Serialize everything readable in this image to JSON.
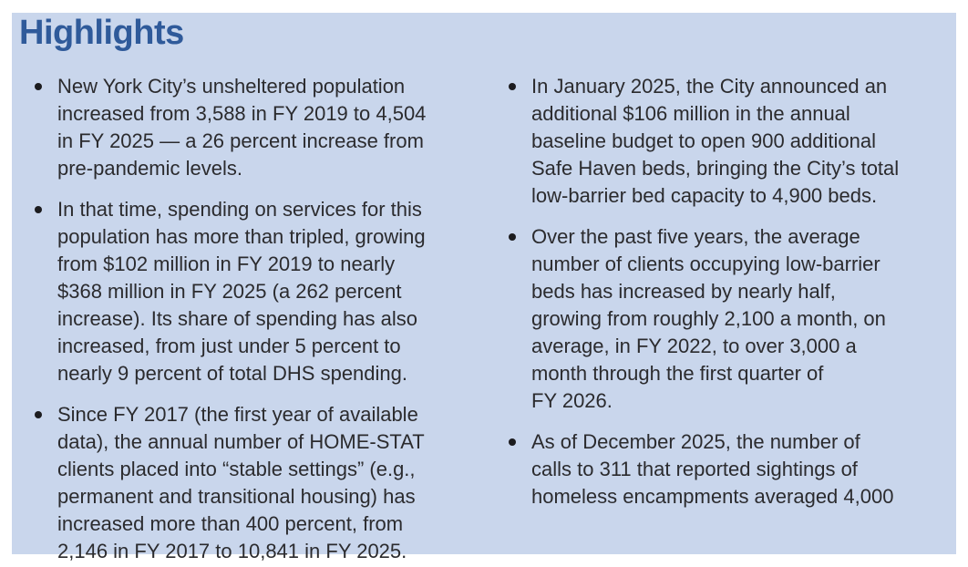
{
  "page": {
    "title": "Highlights"
  },
  "colors": {
    "panel_background": "#c9d6ec",
    "title_text": "#2f5a9a",
    "body_text": "#2b2b2e",
    "page_background": "#ffffff"
  },
  "highlights": {
    "left": [
      {
        "text": "New York City’s unsheltered population\nincreased from 3,588 in FY 2019 to 4,504\nin FY 2025 — a 26 percent increase from\npre-pandemic levels."
      },
      {
        "text": "In that time, spending on services for this\npopulation has more than tripled, growing\nfrom $102 million in FY 2019 to nearly\n$368 million in FY 2025 (a 262 percent\nincrease). Its share of spending has also\nincreased, from just under 5 percent to\nnearly 9 percent of total DHS spending."
      },
      {
        "text": "Since FY 2017 (the first year of available\ndata), the annual number of HOME-STAT\nclients placed into “stable settings” (e.g.,\npermanent and transitional housing) has\nincreased more than 400 percent, from\n2,146 in FY 2017 to 10,841 in FY 2025."
      }
    ],
    "right": [
      {
        "text": "In January 2025, the City announced an\nadditional $106 million in the annual\nbaseline budget to open 900 additional\nSafe Haven beds, bringing the City’s total\nlow-barrier bed capacity to 4,900 beds."
      },
      {
        "text": "Over the past five years, the average\nnumber of clients occupying low-barrier\nbeds has increased by nearly half,\ngrowing from roughly 2,100 a month, on\naverage, in FY 2022, to over 3,000 a\nmonth through the first quarter of\nFY 2026."
      },
      {
        "text": "As of December 2025, the number of\ncalls to 311 that reported sightings of\nhomeless encampments averaged 4,000"
      }
    ]
  }
}
